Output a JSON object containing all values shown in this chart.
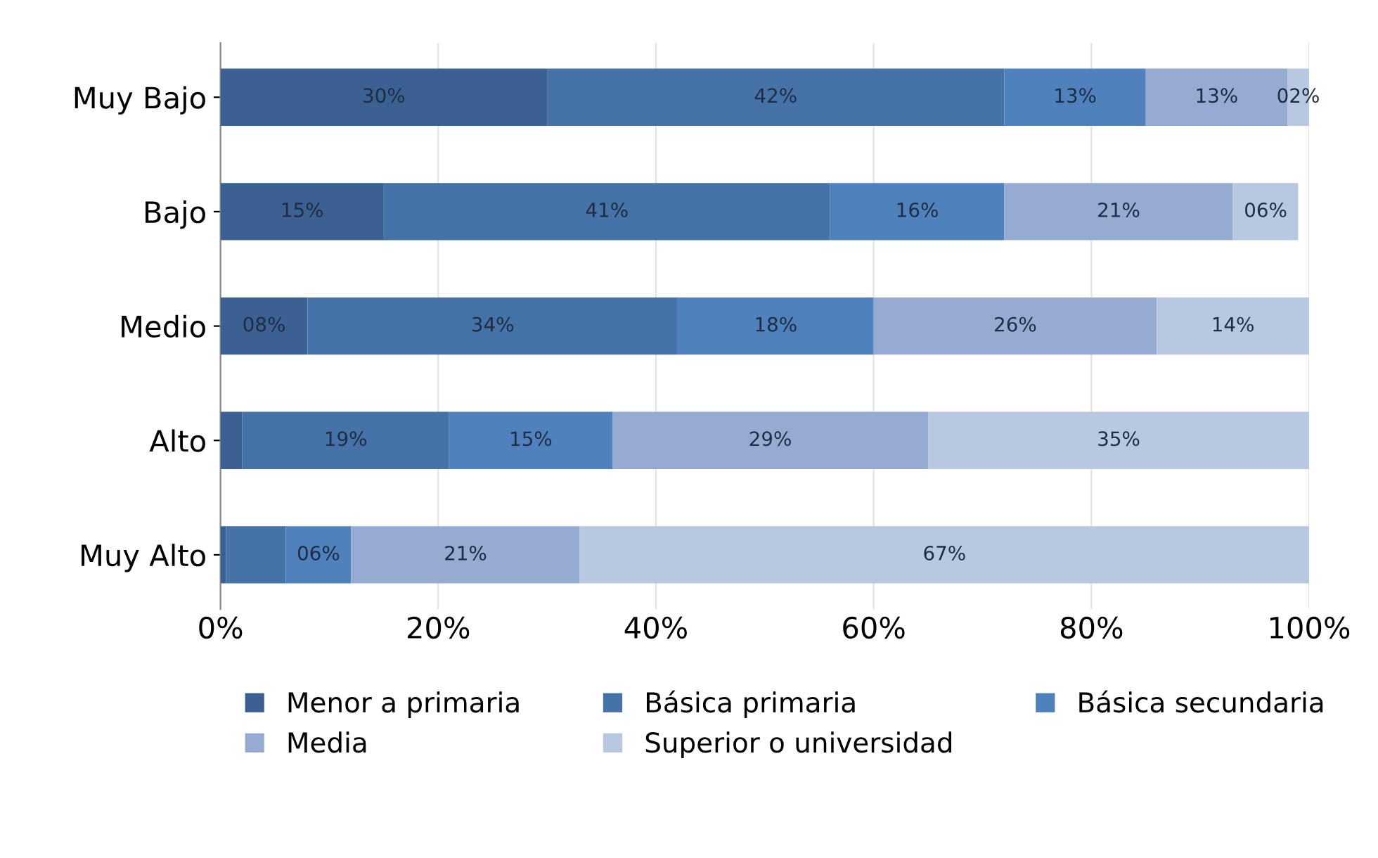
{
  "chart_data": {
    "type": "bar",
    "orientation": "horizontal",
    "stacked": true,
    "categories": [
      "Muy Bajo",
      "Bajo",
      "Medio",
      "Alto",
      "Muy Alto"
    ],
    "xlim": [
      0,
      100
    ],
    "xticks": [
      {
        "value": 0,
        "label": "0%"
      },
      {
        "value": 20,
        "label": "20%"
      },
      {
        "value": 40,
        "label": "40%"
      },
      {
        "value": 60,
        "label": "60%"
      },
      {
        "value": 80,
        "label": "80%"
      },
      {
        "value": 100,
        "label": "100%"
      }
    ],
    "grid": "x",
    "legend": "bottom",
    "series": [
      {
        "name": "Menor a primaria",
        "color": "#3b6193",
        "values": [
          30,
          15,
          8,
          2,
          0.5
        ],
        "value_labels": [
          "30%",
          "15%",
          "08%",
          null,
          null
        ]
      },
      {
        "name": "Básica primaria",
        "color": "#4572a7",
        "values": [
          42,
          41,
          34,
          19,
          5.5
        ],
        "value_labels": [
          "42%",
          "41%",
          "34%",
          "19%",
          null
        ]
      },
      {
        "name": "Básica secundaria",
        "color": "#4f81bd",
        "values": [
          13,
          16,
          18,
          15,
          6
        ],
        "value_labels": [
          "13%",
          "16%",
          "18%",
          "15%",
          "06%"
        ]
      },
      {
        "name": "Media",
        "color": "#95abd2",
        "values": [
          13,
          21,
          26,
          29,
          21
        ],
        "value_labels": [
          "13%",
          "21%",
          "26%",
          "29%",
          "21%"
        ]
      },
      {
        "name": "Superior o universidad",
        "color": "#b9c8e1",
        "values": [
          2,
          6,
          14,
          35,
          67
        ],
        "value_labels": [
          "02%",
          "06%",
          "14%",
          "35%",
          "67%"
        ]
      }
    ]
  }
}
